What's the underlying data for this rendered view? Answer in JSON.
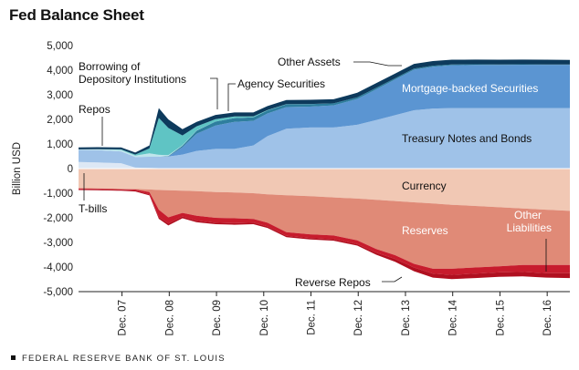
{
  "title": "Fed Balance Sheet",
  "footer": "FEDERAL RESERVE BANK OF ST. LOUIS",
  "chart_data": {
    "type": "area",
    "title": "Fed Balance Sheet",
    "ylabel": "Billion USD",
    "ylim": [
      -5000,
      5000
    ],
    "yticks": [
      5000,
      4000,
      3000,
      2000,
      1000,
      0,
      -1000,
      -2000,
      -3000,
      -4000,
      -5000
    ],
    "ytick_labels": [
      "5,000",
      "4,000",
      "3,000",
      "2,000",
      "1,000",
      "0",
      "-1,000",
      "-2,000",
      "-3,000",
      "-4,000",
      "-5,000"
    ],
    "xlim": [
      2007.0,
      2017.4
    ],
    "xticks": [
      2007.92,
      2008.92,
      2009.92,
      2010.92,
      2011.92,
      2012.92,
      2013.92,
      2014.92,
      2015.92,
      2016.92
    ],
    "xtick_labels": [
      "Dec. 07",
      "Dec. 08",
      "Dec. 09",
      "Dec. 10",
      "Dec. 11",
      "Dec. 12",
      "Dec. 13",
      "Dec. 14",
      "Dec. 15",
      "Dec. 16"
    ],
    "x": [
      2007.0,
      2007.4,
      2007.9,
      2008.2,
      2008.5,
      2008.7,
      2008.9,
      2009.2,
      2009.5,
      2009.9,
      2010.3,
      2010.7,
      2011.0,
      2011.4,
      2011.9,
      2012.4,
      2012.9,
      2013.3,
      2013.7,
      2014.1,
      2014.5,
      2014.9,
      2015.4,
      2015.9,
      2016.4,
      2016.9,
      2017.4
    ],
    "assets": [
      {
        "name": "T-bills",
        "values": [
          270,
          250,
          220,
          40,
          30,
          20,
          20,
          20,
          20,
          20,
          20,
          20,
          20,
          20,
          20,
          20,
          20,
          20,
          20,
          20,
          20,
          20,
          20,
          20,
          20,
          20,
          20
        ],
        "color": "#dde8f5"
      },
      {
        "name": "Treasury Notes and Bonds",
        "values": [
          490,
          500,
          480,
          430,
          450,
          460,
          470,
          550,
          700,
          780,
          780,
          920,
          1300,
          1600,
          1650,
          1650,
          1760,
          1950,
          2150,
          2350,
          2420,
          2440,
          2440,
          2440,
          2440,
          2440,
          2440
        ],
        "color": "#9fc2e8"
      },
      {
        "name": "Mortgage-backed Securities",
        "values": [
          0,
          0,
          0,
          0,
          0,
          0,
          0,
          300,
          700,
          950,
          1100,
          1000,
          920,
          880,
          850,
          900,
          1050,
          1250,
          1450,
          1650,
          1700,
          1740,
          1750,
          1750,
          1760,
          1760,
          1760
        ],
        "color": "#5b95d2"
      },
      {
        "name": "Agency Securities",
        "values": [
          0,
          0,
          0,
          0,
          0,
          0,
          20,
          60,
          120,
          160,
          150,
          140,
          120,
          110,
          100,
          80,
          70,
          60,
          50,
          45,
          40,
          35,
          30,
          25,
          20,
          15,
          10
        ],
        "color": "#2e7e9e"
      },
      {
        "name": "Repos",
        "values": [
          20,
          40,
          60,
          60,
          140,
          80,
          40,
          20,
          10,
          0,
          0,
          0,
          0,
          0,
          0,
          0,
          0,
          0,
          0,
          0,
          0,
          0,
          0,
          0,
          0,
          0,
          0
        ],
        "color": "#bfe5ec"
      },
      {
        "name": "Borrowing of Depository Institutions",
        "values": [
          0,
          0,
          20,
          40,
          200,
          1500,
          1100,
          400,
          170,
          100,
          70,
          40,
          20,
          10,
          5,
          0,
          0,
          0,
          0,
          0,
          0,
          0,
          0,
          0,
          0,
          0,
          0
        ],
        "color": "#5fc4c4"
      },
      {
        "name": "Other Assets",
        "values": [
          80,
          80,
          80,
          80,
          120,
          400,
          350,
          250,
          180,
          170,
          160,
          160,
          160,
          170,
          170,
          170,
          180,
          190,
          190,
          190,
          190,
          190,
          190,
          190,
          190,
          190,
          190
        ],
        "color": "#0d3a5c"
      }
    ],
    "liabilities": [
      {
        "name": "Currency",
        "values": [
          -790,
          -800,
          -820,
          -830,
          -850,
          -870,
          -880,
          -900,
          -920,
          -950,
          -970,
          -1000,
          -1050,
          -1080,
          -1120,
          -1170,
          -1220,
          -1270,
          -1320,
          -1370,
          -1420,
          -1470,
          -1520,
          -1570,
          -1620,
          -1670,
          -1720
        ],
        "color": "#f1c8b4"
      },
      {
        "name": "Reserves",
        "values": [
          -20,
          -20,
          -20,
          -20,
          -100,
          -800,
          -1100,
          -900,
          -1000,
          -1050,
          -1050,
          -1050,
          -1150,
          -1500,
          -1550,
          -1550,
          -1700,
          -2000,
          -2200,
          -2500,
          -2650,
          -2600,
          -2500,
          -2400,
          -2300,
          -2250,
          -2200
        ],
        "color": "#e08a77"
      },
      {
        "name": "Other Liabilities",
        "values": [
          -30,
          -30,
          -30,
          -40,
          -100,
          -300,
          -250,
          -150,
          -200,
          -200,
          -200,
          -150,
          -150,
          -150,
          -150,
          -150,
          -150,
          -150,
          -150,
          -150,
          -200,
          -250,
          -250,
          -250,
          -280,
          -330,
          -330
        ],
        "color": "#c71c2d"
      },
      {
        "name": "Reverse Repos",
        "values": [
          -30,
          -30,
          -30,
          -40,
          -40,
          -70,
          -80,
          -70,
          -60,
          -60,
          -60,
          -60,
          -60,
          -60,
          -60,
          -60,
          -60,
          -80,
          -120,
          -150,
          -160,
          -170,
          -180,
          -180,
          -180,
          -180,
          -200
        ],
        "color": "#b01020"
      }
    ],
    "labels": {
      "other_assets": "Other Assets",
      "borrowing_line1": "Borrowing of",
      "borrowing_line2": "Depository Institutions",
      "agency": "Agency Securities",
      "repos": "Repos",
      "mbs": "Mortgage-backed Securities",
      "treasury": "Treasury Notes and Bonds",
      "currency": "Currency",
      "tbills": "T-bills",
      "reserves": "Reserves",
      "other_liab_line1": "Other",
      "other_liab_line2": "Liabilities",
      "reverse_repos": "Reverse Repos"
    },
    "grid": false,
    "legend": "none"
  }
}
